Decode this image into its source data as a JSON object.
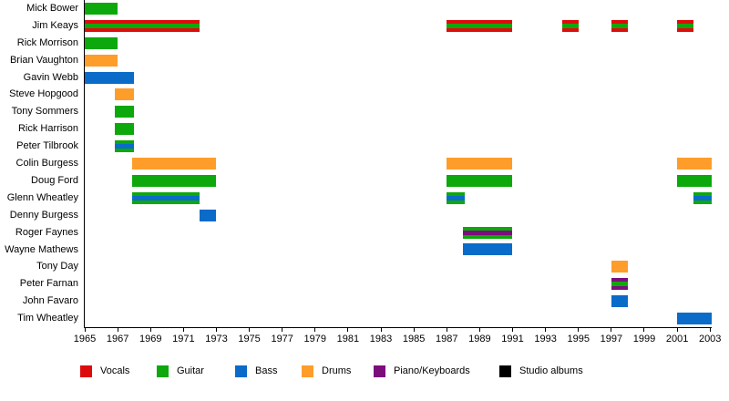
{
  "chart_data": {
    "type": "bar",
    "subtype": "band-member-timeline",
    "title": "",
    "xlabel": "",
    "ylabel": "",
    "grid": false,
    "legend_position": "bottom",
    "x_range": [
      1965,
      2003.1
    ],
    "x_ticks": [
      1965,
      1967,
      1969,
      1971,
      1973,
      1975,
      1977,
      1979,
      1981,
      1983,
      1985,
      1987,
      1989,
      1991,
      1993,
      1995,
      1997,
      1999,
      2001,
      2003
    ],
    "role_colors": {
      "vocals": "#dd0c0c",
      "guitar": "#0ca80c",
      "bass": "#0a6bc8",
      "drums": "#ff9d2b",
      "piano_keyboards": "#7c0d7c",
      "studio_albums": "#000000"
    },
    "legend": [
      {
        "label": "Vocals",
        "role": "vocals"
      },
      {
        "label": "Guitar",
        "role": "guitar"
      },
      {
        "label": "Bass",
        "role": "bass"
      },
      {
        "label": "Drums",
        "role": "drums"
      },
      {
        "label": "Piano/Keyboards",
        "role": "piano_keyboards"
      },
      {
        "label": "Studio albums",
        "role": "studio_albums"
      }
    ],
    "members": [
      {
        "name": "Mick Bower",
        "bars": [
          {
            "start": 1965,
            "end": 1967,
            "role": "guitar"
          }
        ]
      },
      {
        "name": "Jim Keays",
        "bars": [
          {
            "start": 1965,
            "end": 1972,
            "role": "vocals",
            "stripe": "guitar"
          },
          {
            "start": 1987,
            "end": 1991,
            "role": "vocals",
            "stripe": "guitar"
          },
          {
            "start": 1994,
            "end": 1995,
            "role": "vocals",
            "stripe": "guitar"
          },
          {
            "start": 1997,
            "end": 1998,
            "role": "vocals",
            "stripe": "guitar"
          },
          {
            "start": 2001,
            "end": 2002,
            "role": "vocals",
            "stripe": "guitar"
          }
        ]
      },
      {
        "name": "Rick Morrison",
        "bars": [
          {
            "start": 1965,
            "end": 1967,
            "role": "guitar"
          }
        ]
      },
      {
        "name": "Brian Vaughton",
        "bars": [
          {
            "start": 1965,
            "end": 1967,
            "role": "drums"
          }
        ]
      },
      {
        "name": "Gavin Webb",
        "bars": [
          {
            "start": 1965,
            "end": 1968,
            "role": "bass"
          }
        ]
      },
      {
        "name": "Steve Hopgood",
        "bars": [
          {
            "start": 1966.8,
            "end": 1968,
            "role": "drums"
          }
        ]
      },
      {
        "name": "Tony Sommers",
        "bars": [
          {
            "start": 1966.8,
            "end": 1968,
            "role": "guitar"
          }
        ]
      },
      {
        "name": "Rick Harrison",
        "bars": [
          {
            "start": 1966.8,
            "end": 1968,
            "role": "guitar"
          }
        ]
      },
      {
        "name": "Peter Tilbrook",
        "bars": [
          {
            "start": 1966.8,
            "end": 1968,
            "role": "guitar",
            "stripe": "bass"
          }
        ]
      },
      {
        "name": "Colin Burgess",
        "bars": [
          {
            "start": 1967.9,
            "end": 1973,
            "role": "drums"
          },
          {
            "start": 1987,
            "end": 1991,
            "role": "drums"
          },
          {
            "start": 2001,
            "end": 2003.1,
            "role": "drums"
          }
        ]
      },
      {
        "name": "Doug Ford",
        "bars": [
          {
            "start": 1967.9,
            "end": 1973,
            "role": "guitar"
          },
          {
            "start": 1987,
            "end": 1991,
            "role": "guitar"
          },
          {
            "start": 2001,
            "end": 2003.1,
            "role": "guitar"
          }
        ]
      },
      {
        "name": "Glenn Wheatley",
        "bars": [
          {
            "start": 1967.9,
            "end": 1972,
            "role": "guitar",
            "stripe": "bass"
          },
          {
            "start": 1987,
            "end": 1988.1,
            "role": "guitar",
            "stripe": "bass"
          },
          {
            "start": 2002,
            "end": 2003.1,
            "role": "guitar",
            "stripe": "bass"
          }
        ]
      },
      {
        "name": "Denny Burgess",
        "bars": [
          {
            "start": 1972,
            "end": 1973,
            "role": "bass"
          }
        ]
      },
      {
        "name": "Roger Faynes",
        "bars": [
          {
            "start": 1988,
            "end": 1991,
            "role": "guitar",
            "stripe": "piano_keyboards"
          }
        ]
      },
      {
        "name": "Wayne Mathews",
        "bars": [
          {
            "start": 1988,
            "end": 1991,
            "role": "bass"
          }
        ]
      },
      {
        "name": "Tony Day",
        "bars": [
          {
            "start": 1997,
            "end": 1998,
            "role": "drums"
          }
        ]
      },
      {
        "name": "Peter Farnan",
        "bars": [
          {
            "start": 1997,
            "end": 1998,
            "role": "piano_keyboards",
            "stripe": "guitar"
          }
        ]
      },
      {
        "name": "John Favaro",
        "bars": [
          {
            "start": 1997,
            "end": 1998,
            "role": "bass"
          }
        ]
      },
      {
        "name": "Tim Wheatley",
        "bars": [
          {
            "start": 2001,
            "end": 2003.1,
            "role": "bass"
          }
        ]
      }
    ]
  }
}
